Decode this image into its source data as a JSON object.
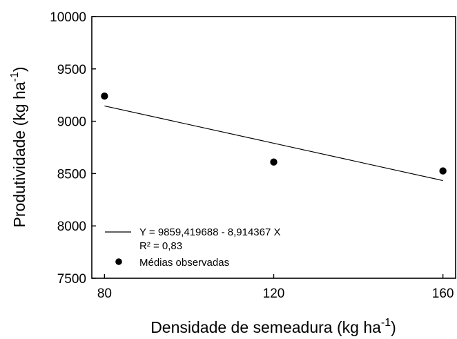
{
  "chart_data": {
    "type": "scatter",
    "xlabel": "Densidade de semeadura (kg ha",
    "xlabel_sup": "-1",
    "xlabel_end": ")",
    "ylabel": "Produtividade (kg ha",
    "ylabel_sup": "-1",
    "ylabel_end": ")",
    "xlim": [
      77,
      163
    ],
    "ylim": [
      7500,
      10000
    ],
    "xticks": [
      "80",
      "120",
      "160"
    ],
    "xtick_values": [
      80,
      120,
      160
    ],
    "yticks": [
      "7500",
      "8000",
      "8500",
      "9000",
      "9500",
      "10000"
    ],
    "ytick_values": [
      7500,
      8000,
      8500,
      9000,
      9500,
      10000
    ],
    "series": [
      {
        "name": "Médias observadas",
        "type": "scatter",
        "x": [
          80,
          120,
          160
        ],
        "y": [
          9240,
          8610,
          8525
        ]
      }
    ],
    "regression": {
      "intercept": 9859.419688,
      "slope": -8.914367,
      "x_range": [
        80,
        160
      ],
      "equation": "Y = 9859,419688 - 8,914367 X",
      "r2": "R² = 0,83"
    },
    "legend_position": "bottom-left",
    "grid": false
  }
}
